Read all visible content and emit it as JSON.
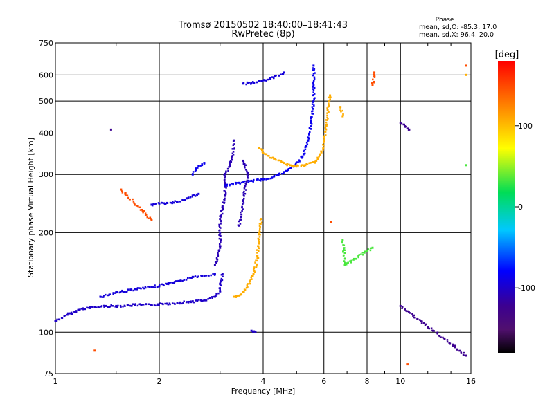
{
  "chart_data": {
    "type": "scatter",
    "title": "Tromsø 20150502 18:40:00–18:41:43",
    "subtitle": "RwPretec (8p)",
    "xlabel": "Frequency [MHz]",
    "ylabel": "Stationary phase Virtual Height [km]",
    "x_scale": "log",
    "y_scale": "log",
    "xlim": [
      1,
      16
    ],
    "ylim": [
      75,
      750
    ],
    "x_ticks": [
      1,
      2,
      4,
      6,
      8,
      10,
      16
    ],
    "y_ticks": [
      75,
      100,
      200,
      300,
      400,
      500,
      600,
      750
    ],
    "grid": true,
    "stats": {
      "heading": "Phase",
      "line_o": "mean, sd,O: -85.3, 17.0",
      "line_x": "mean, sd,X:  96.4, 20.0"
    },
    "colorbar": {
      "title": "[deg]",
      "range": [
        -180,
        180
      ],
      "ticks": [
        100,
        0,
        -100
      ],
      "tick_labels": [
        "100",
        "0",
        "-100"
      ],
      "colormap": "black-purple-blue-cyan-green-yellow-orange-red"
    },
    "series": [
      {
        "phase": -105,
        "points": [
          [
            1.0,
            108
          ],
          [
            1.1,
            114
          ],
          [
            1.2,
            118
          ],
          [
            1.3,
            119
          ],
          [
            1.4,
            120
          ],
          [
            1.5,
            120
          ],
          [
            1.7,
            121
          ],
          [
            1.9,
            121
          ],
          [
            2.1,
            122
          ],
          [
            2.3,
            123
          ],
          [
            2.5,
            124
          ],
          [
            2.7,
            125
          ],
          [
            2.9,
            128
          ],
          [
            3.0,
            133
          ],
          [
            3.0,
            140
          ],
          [
            3.05,
            150
          ]
        ]
      },
      {
        "phase": -100,
        "points": [
          [
            1.35,
            128
          ],
          [
            1.5,
            132
          ],
          [
            1.7,
            135
          ],
          [
            1.9,
            137
          ],
          [
            2.1,
            140
          ],
          [
            2.3,
            143
          ],
          [
            2.5,
            147
          ],
          [
            2.7,
            148
          ],
          [
            2.9,
            150
          ]
        ]
      },
      {
        "phase": -110,
        "points": [
          [
            2.9,
            160
          ],
          [
            3.0,
            180
          ],
          [
            3.0,
            200
          ],
          [
            3.0,
            220
          ],
          [
            3.05,
            240
          ],
          [
            3.1,
            260
          ],
          [
            3.1,
            280
          ],
          [
            3.1,
            300
          ],
          [
            3.2,
            320
          ],
          [
            3.25,
            340
          ],
          [
            3.3,
            380
          ]
        ]
      },
      {
        "phase": -95,
        "points": [
          [
            3.1,
            278
          ],
          [
            3.4,
            283
          ],
          [
            3.7,
            287
          ],
          [
            4.0,
            290
          ],
          [
            4.3,
            296
          ],
          [
            4.6,
            305
          ],
          [
            4.9,
            318
          ],
          [
            5.2,
            340
          ],
          [
            5.4,
            380
          ],
          [
            5.5,
            430
          ],
          [
            5.6,
            500
          ],
          [
            5.6,
            560
          ],
          [
            5.6,
            640
          ]
        ]
      },
      {
        "phase": -100,
        "points": [
          [
            1.9,
            243
          ],
          [
            2.0,
            245
          ],
          [
            2.1,
            246
          ],
          [
            2.25,
            248
          ],
          [
            2.4,
            254
          ],
          [
            2.6,
            262
          ]
        ]
      },
      {
        "phase": -95,
        "points": [
          [
            2.5,
            300
          ],
          [
            2.55,
            310
          ],
          [
            2.6,
            318
          ],
          [
            2.7,
            325
          ]
        ]
      },
      {
        "phase": -110,
        "points": [
          [
            3.4,
            210
          ],
          [
            3.5,
            250
          ],
          [
            3.6,
            300
          ],
          [
            3.5,
            330
          ]
        ]
      },
      {
        "phase": -100,
        "points": [
          [
            3.5,
            565
          ],
          [
            3.7,
            568
          ],
          [
            3.9,
            575
          ],
          [
            4.2,
            585
          ],
          [
            4.6,
            610
          ]
        ]
      },
      {
        "phase": -105,
        "points": [
          [
            3.7,
            101
          ],
          [
            3.8,
            100
          ]
        ]
      },
      {
        "phase": 110,
        "points": [
          [
            3.3,
            128
          ],
          [
            3.45,
            130
          ],
          [
            3.6,
            137
          ],
          [
            3.75,
            150
          ],
          [
            3.85,
            170
          ],
          [
            3.9,
            200
          ],
          [
            3.95,
            220
          ]
        ]
      },
      {
        "phase": 110,
        "points": [
          [
            3.9,
            360
          ],
          [
            4.0,
            348
          ],
          [
            4.3,
            335
          ],
          [
            4.6,
            325
          ],
          [
            4.9,
            318
          ],
          [
            5.3,
            320
          ],
          [
            5.7,
            330
          ],
          [
            5.9,
            350
          ],
          [
            6.0,
            380
          ],
          [
            6.1,
            420
          ],
          [
            6.15,
            470
          ],
          [
            6.25,
            520
          ]
        ]
      },
      {
        "phase": 110,
        "points": [
          [
            6.7,
            480
          ],
          [
            6.8,
            450
          ],
          [
            15.5,
            600
          ]
        ]
      },
      {
        "phase": -120,
        "points": [
          [
            1.45,
            410
          ],
          [
            10.0,
            430
          ],
          [
            10.6,
            410
          ],
          [
            10.0,
            120
          ],
          [
            15.5,
            85
          ]
        ]
      },
      {
        "phase": 150,
        "points": [
          [
            1.3,
            88
          ],
          [
            1.55,
            270
          ],
          [
            1.9,
            218
          ],
          [
            6.3,
            215
          ],
          [
            8.3,
            560
          ],
          [
            8.4,
            610
          ],
          [
            10.5,
            80
          ],
          [
            15.5,
            640
          ]
        ]
      },
      {
        "phase": 20,
        "points": [
          [
            6.8,
            190
          ],
          [
            6.9,
            160
          ],
          [
            8.3,
            180
          ],
          [
            15.5,
            320
          ]
        ]
      }
    ]
  }
}
